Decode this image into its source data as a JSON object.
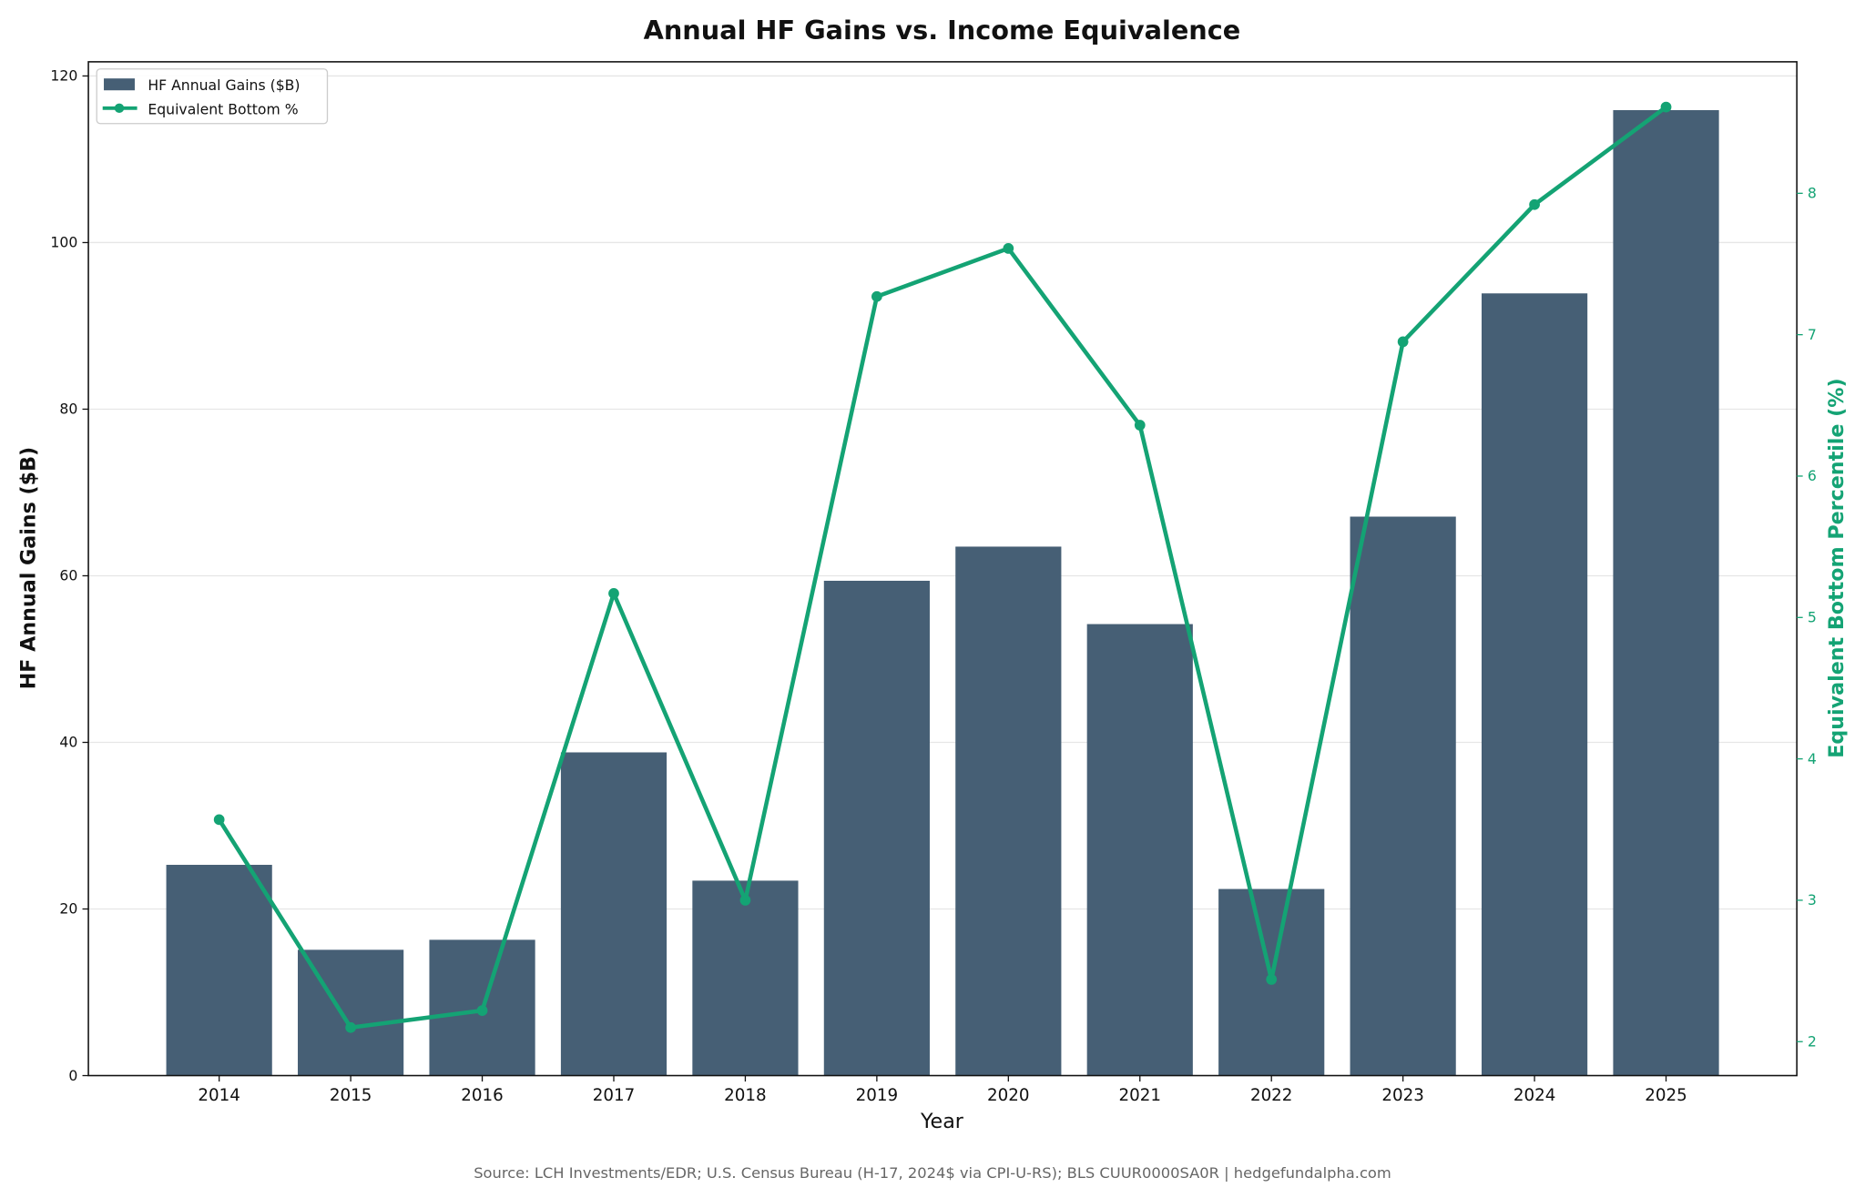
{
  "chart_data": {
    "type": "bar+line",
    "title": "Annual HF Gains vs. Income Equivalence",
    "xlabel": "Year",
    "ylabel_left": "HF Annual Gains ($B)",
    "ylabel_right": "Equivalent Bottom Percentile (%)",
    "categories": [
      "2014",
      "2015",
      "2016",
      "2017",
      "2018",
      "2019",
      "2020",
      "2021",
      "2022",
      "2023",
      "2024",
      "2025"
    ],
    "ylim_left": [
      0,
      121.7
    ],
    "yticks_left": [
      0,
      20,
      40,
      60,
      80,
      100,
      120
    ],
    "ylim_right": [
      1.76,
      8.93
    ],
    "yticks_right": [
      2,
      3,
      4,
      5,
      6,
      7,
      8
    ],
    "grid": "horizontal",
    "legend_position": "top-left",
    "series": [
      {
        "name": "HF Annual Gains ($B)",
        "type": "bar",
        "axis": "left",
        "color": "#465f75",
        "values": [
          25.3,
          15.1,
          16.3,
          38.8,
          23.4,
          59.4,
          63.5,
          54.2,
          22.4,
          67.1,
          93.9,
          115.9
        ]
      },
      {
        "name": "Equivalent Bottom %",
        "type": "line",
        "axis": "right",
        "color": "#14a374",
        "values": [
          3.57,
          2.1,
          2.22,
          5.17,
          3.0,
          7.27,
          7.61,
          6.36,
          2.44,
          6.95,
          7.92,
          8.61
        ]
      }
    ]
  },
  "footer": {
    "source": "Source: LCH Investments/EDR; U.S. Census Bureau (H-17, 2024$ via CPI-U-RS); BLS CUUR0000SA0R | hedgefundalpha.com"
  }
}
